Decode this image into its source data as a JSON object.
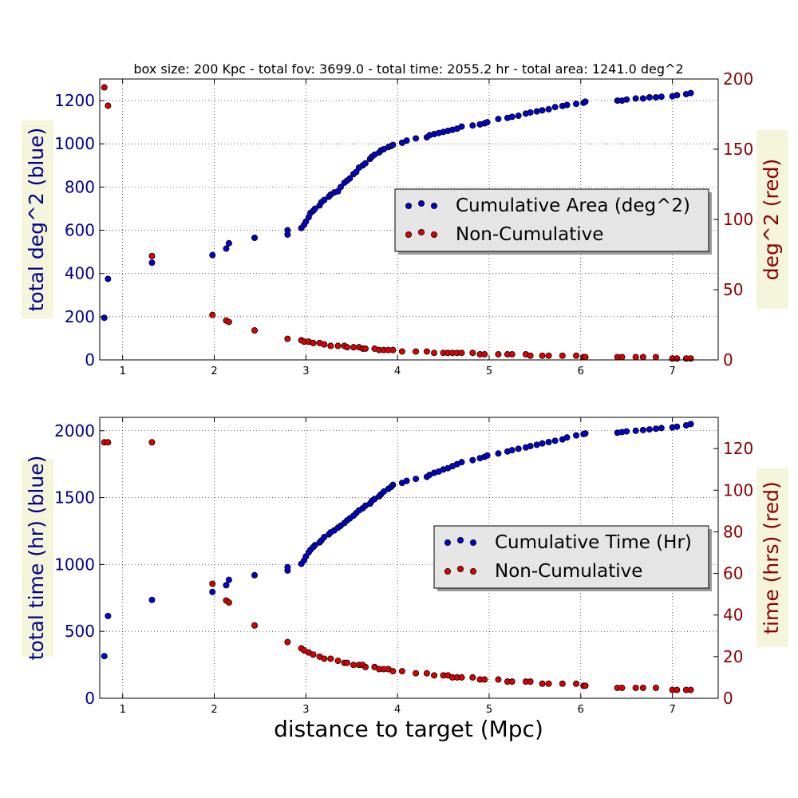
{
  "title": "box size: 200 Kpc  -  total fov: 3699.0  -  total time: 2055.2 hr  -  total area: 1241.0 deg^2",
  "xlabel": "distance to target (Mpc)",
  "colors": {
    "blue_series": "#0000cd",
    "red_series": "#dd0000",
    "left_axis_text": "#00008b",
    "right_axis_text": "#8b0000",
    "label_bg": "#f5f5dc",
    "legend_bg": "#e5e5e5"
  },
  "chart_data": [
    {
      "type": "scatter",
      "grid": true,
      "legend_placement": "center-right",
      "xlim": [
        0.75,
        7.5
      ],
      "x_ticks": [
        "1",
        "2",
        "3",
        "4",
        "5",
        "6",
        "7"
      ],
      "ylabel_left": "total deg^2 (blue)",
      "ylabel_right": "deg^2 (red)",
      "ylim_left": [
        0,
        1300
      ],
      "ylim_right": [
        0,
        200
      ],
      "y_ticks_left": [
        "0",
        "200",
        "400",
        "600",
        "800",
        "1000",
        "1200"
      ],
      "y_ticks_right": [
        "0",
        "50",
        "100",
        "150",
        "200"
      ],
      "legend": [
        "Cumulative Area (deg^2)",
        "Non-Cumulative"
      ],
      "series": [
        {
          "name": "Cumulative Area (deg^2)",
          "axis": "left",
          "color": "#0000cd",
          "x": [
            0.8,
            0.84,
            1.32,
            1.98,
            2.13,
            2.16,
            2.44,
            2.8,
            2.8,
            2.95,
            2.98,
            3.0,
            3.03,
            3.05,
            3.08,
            3.1,
            3.15,
            3.17,
            3.2,
            3.25,
            3.27,
            3.31,
            3.35,
            3.38,
            3.42,
            3.45,
            3.48,
            3.52,
            3.55,
            3.58,
            3.62,
            3.65,
            3.7,
            3.72,
            3.75,
            3.8,
            3.82,
            3.85,
            3.9,
            3.93,
            3.95,
            4.05,
            4.1,
            4.2,
            4.32,
            4.35,
            4.4,
            4.45,
            4.5,
            4.55,
            4.6,
            4.65,
            4.7,
            4.82,
            4.9,
            4.95,
            4.98,
            5.1,
            5.2,
            5.25,
            5.32,
            5.4,
            5.45,
            5.52,
            5.58,
            5.65,
            5.72,
            5.8,
            5.85,
            5.95,
            6.03,
            6.05,
            6.4,
            6.45,
            6.5,
            6.6,
            6.68,
            6.75,
            6.82,
            6.88,
            7.0,
            7.05,
            7.15,
            7.2
          ],
          "y": [
            195,
            375,
            450,
            485,
            515,
            540,
            565,
            580,
            600,
            610,
            625,
            640,
            660,
            680,
            690,
            700,
            715,
            730,
            740,
            755,
            765,
            775,
            780,
            800,
            820,
            830,
            840,
            860,
            870,
            890,
            900,
            910,
            930,
            940,
            950,
            960,
            970,
            975,
            985,
            990,
            995,
            1005,
            1015,
            1025,
            1030,
            1040,
            1045,
            1050,
            1055,
            1060,
            1065,
            1070,
            1080,
            1085,
            1090,
            1095,
            1100,
            1115,
            1120,
            1125,
            1130,
            1140,
            1145,
            1150,
            1155,
            1160,
            1170,
            1175,
            1180,
            1185,
            1190,
            1195,
            1200,
            1200,
            1205,
            1210,
            1210,
            1215,
            1215,
            1218,
            1220,
            1225,
            1230,
            1235
          ]
        },
        {
          "name": "Non-Cumulative",
          "axis": "right",
          "color": "#dd0000",
          "x": [
            0.8,
            0.84,
            1.32,
            1.98,
            2.13,
            2.16,
            2.44,
            2.8,
            2.95,
            2.98,
            3.03,
            3.08,
            3.15,
            3.2,
            3.27,
            3.35,
            3.42,
            3.45,
            3.52,
            3.58,
            3.62,
            3.65,
            3.75,
            3.8,
            3.85,
            3.9,
            3.95,
            4.05,
            4.2,
            4.32,
            4.4,
            4.5,
            4.55,
            4.6,
            4.65,
            4.7,
            4.82,
            4.9,
            4.95,
            5.1,
            5.2,
            5.25,
            5.4,
            5.45,
            5.58,
            5.65,
            5.8,
            5.95,
            6.03,
            6.05,
            6.4,
            6.45,
            6.6,
            6.68,
            6.82,
            7.0,
            7.05,
            7.15,
            7.2
          ],
          "y": [
            194,
            181,
            74,
            32,
            28,
            27,
            21,
            15,
            14,
            13,
            13,
            12,
            12,
            11,
            10,
            10,
            10,
            9,
            9,
            9,
            8,
            8,
            8,
            7,
            7,
            7,
            7,
            6,
            6,
            6,
            5,
            5,
            5,
            5,
            5,
            5,
            5,
            4,
            4,
            4,
            4,
            4,
            4,
            3,
            3,
            3,
            3,
            3,
            2,
            2,
            2,
            2,
            2,
            2,
            2,
            1,
            1,
            1,
            1
          ]
        }
      ]
    },
    {
      "type": "scatter",
      "grid": true,
      "legend_placement": "center-right",
      "xlim": [
        0.75,
        7.5
      ],
      "x_ticks": [
        "1",
        "2",
        "3",
        "4",
        "5",
        "6",
        "7"
      ],
      "ylabel_left": "total time (hr) (blue)",
      "ylabel_right": "time (hrs) (red)",
      "ylim_left": [
        0,
        2100
      ],
      "ylim_right": [
        0,
        135
      ],
      "y_ticks_left": [
        "0",
        "500",
        "1000",
        "1500",
        "2000"
      ],
      "y_ticks_right": [
        "0",
        "20",
        "40",
        "60",
        "80",
        "100",
        "120"
      ],
      "legend": [
        "Cumulative Time (Hr)",
        "Non-Cumulative"
      ],
      "series": [
        {
          "name": "Cumulative Time (Hr)",
          "axis": "left",
          "color": "#0000cd",
          "x": [
            0.8,
            0.84,
            1.32,
            1.98,
            2.13,
            2.16,
            2.44,
            2.8,
            2.8,
            2.95,
            2.98,
            3.0,
            3.03,
            3.05,
            3.08,
            3.1,
            3.15,
            3.17,
            3.2,
            3.25,
            3.27,
            3.31,
            3.35,
            3.38,
            3.42,
            3.45,
            3.48,
            3.52,
            3.55,
            3.58,
            3.62,
            3.65,
            3.7,
            3.72,
            3.75,
            3.8,
            3.82,
            3.85,
            3.9,
            3.93,
            3.95,
            4.05,
            4.1,
            4.2,
            4.32,
            4.35,
            4.4,
            4.45,
            4.5,
            4.55,
            4.6,
            4.65,
            4.7,
            4.82,
            4.9,
            4.95,
            4.98,
            5.1,
            5.2,
            5.25,
            5.32,
            5.4,
            5.45,
            5.52,
            5.58,
            5.65,
            5.72,
            5.8,
            5.85,
            5.95,
            6.03,
            6.05,
            6.4,
            6.45,
            6.5,
            6.6,
            6.68,
            6.75,
            6.82,
            6.88,
            7.0,
            7.05,
            7.15,
            7.2
          ],
          "y": [
            315,
            615,
            735,
            795,
            845,
            885,
            920,
            955,
            980,
            1005,
            1030,
            1060,
            1090,
            1110,
            1130,
            1145,
            1165,
            1180,
            1205,
            1225,
            1240,
            1255,
            1275,
            1290,
            1310,
            1330,
            1345,
            1365,
            1385,
            1405,
            1420,
            1440,
            1455,
            1475,
            1490,
            1510,
            1525,
            1545,
            1565,
            1580,
            1595,
            1610,
            1625,
            1640,
            1655,
            1670,
            1685,
            1695,
            1710,
            1720,
            1735,
            1750,
            1765,
            1780,
            1795,
            1805,
            1815,
            1830,
            1845,
            1855,
            1865,
            1875,
            1885,
            1895,
            1905,
            1915,
            1925,
            1935,
            1950,
            1965,
            1975,
            1980,
            1985,
            1990,
            1995,
            2000,
            2005,
            2010,
            2015,
            2020,
            2025,
            2030,
            2040,
            2050
          ]
        },
        {
          "name": "Non-Cumulative",
          "axis": "right",
          "color": "#dd0000",
          "x": [
            0.8,
            0.84,
            1.32,
            1.98,
            2.13,
            2.16,
            2.44,
            2.8,
            2.95,
            2.98,
            3.03,
            3.08,
            3.15,
            3.2,
            3.27,
            3.35,
            3.42,
            3.45,
            3.52,
            3.58,
            3.62,
            3.65,
            3.75,
            3.8,
            3.85,
            3.9,
            3.95,
            4.05,
            4.2,
            4.32,
            4.4,
            4.5,
            4.55,
            4.6,
            4.65,
            4.7,
            4.82,
            4.9,
            4.95,
            5.1,
            5.2,
            5.25,
            5.4,
            5.45,
            5.58,
            5.65,
            5.8,
            5.95,
            6.03,
            6.05,
            6.4,
            6.45,
            6.6,
            6.68,
            6.82,
            7.0,
            7.05,
            7.15,
            7.2
          ],
          "y": [
            123,
            123,
            123,
            55,
            47,
            46,
            35,
            27,
            24,
            23,
            22,
            21,
            20,
            19,
            19,
            18,
            17,
            17,
            16,
            16,
            16,
            15,
            15,
            14,
            14,
            14,
            13,
            13,
            12,
            12,
            11,
            11,
            11,
            10,
            10,
            10,
            10,
            9,
            9,
            9,
            8,
            8,
            8,
            8,
            7,
            7,
            7,
            7,
            6,
            6,
            5,
            5,
            5,
            5,
            5,
            4,
            4,
            4,
            4
          ]
        }
      ]
    }
  ]
}
